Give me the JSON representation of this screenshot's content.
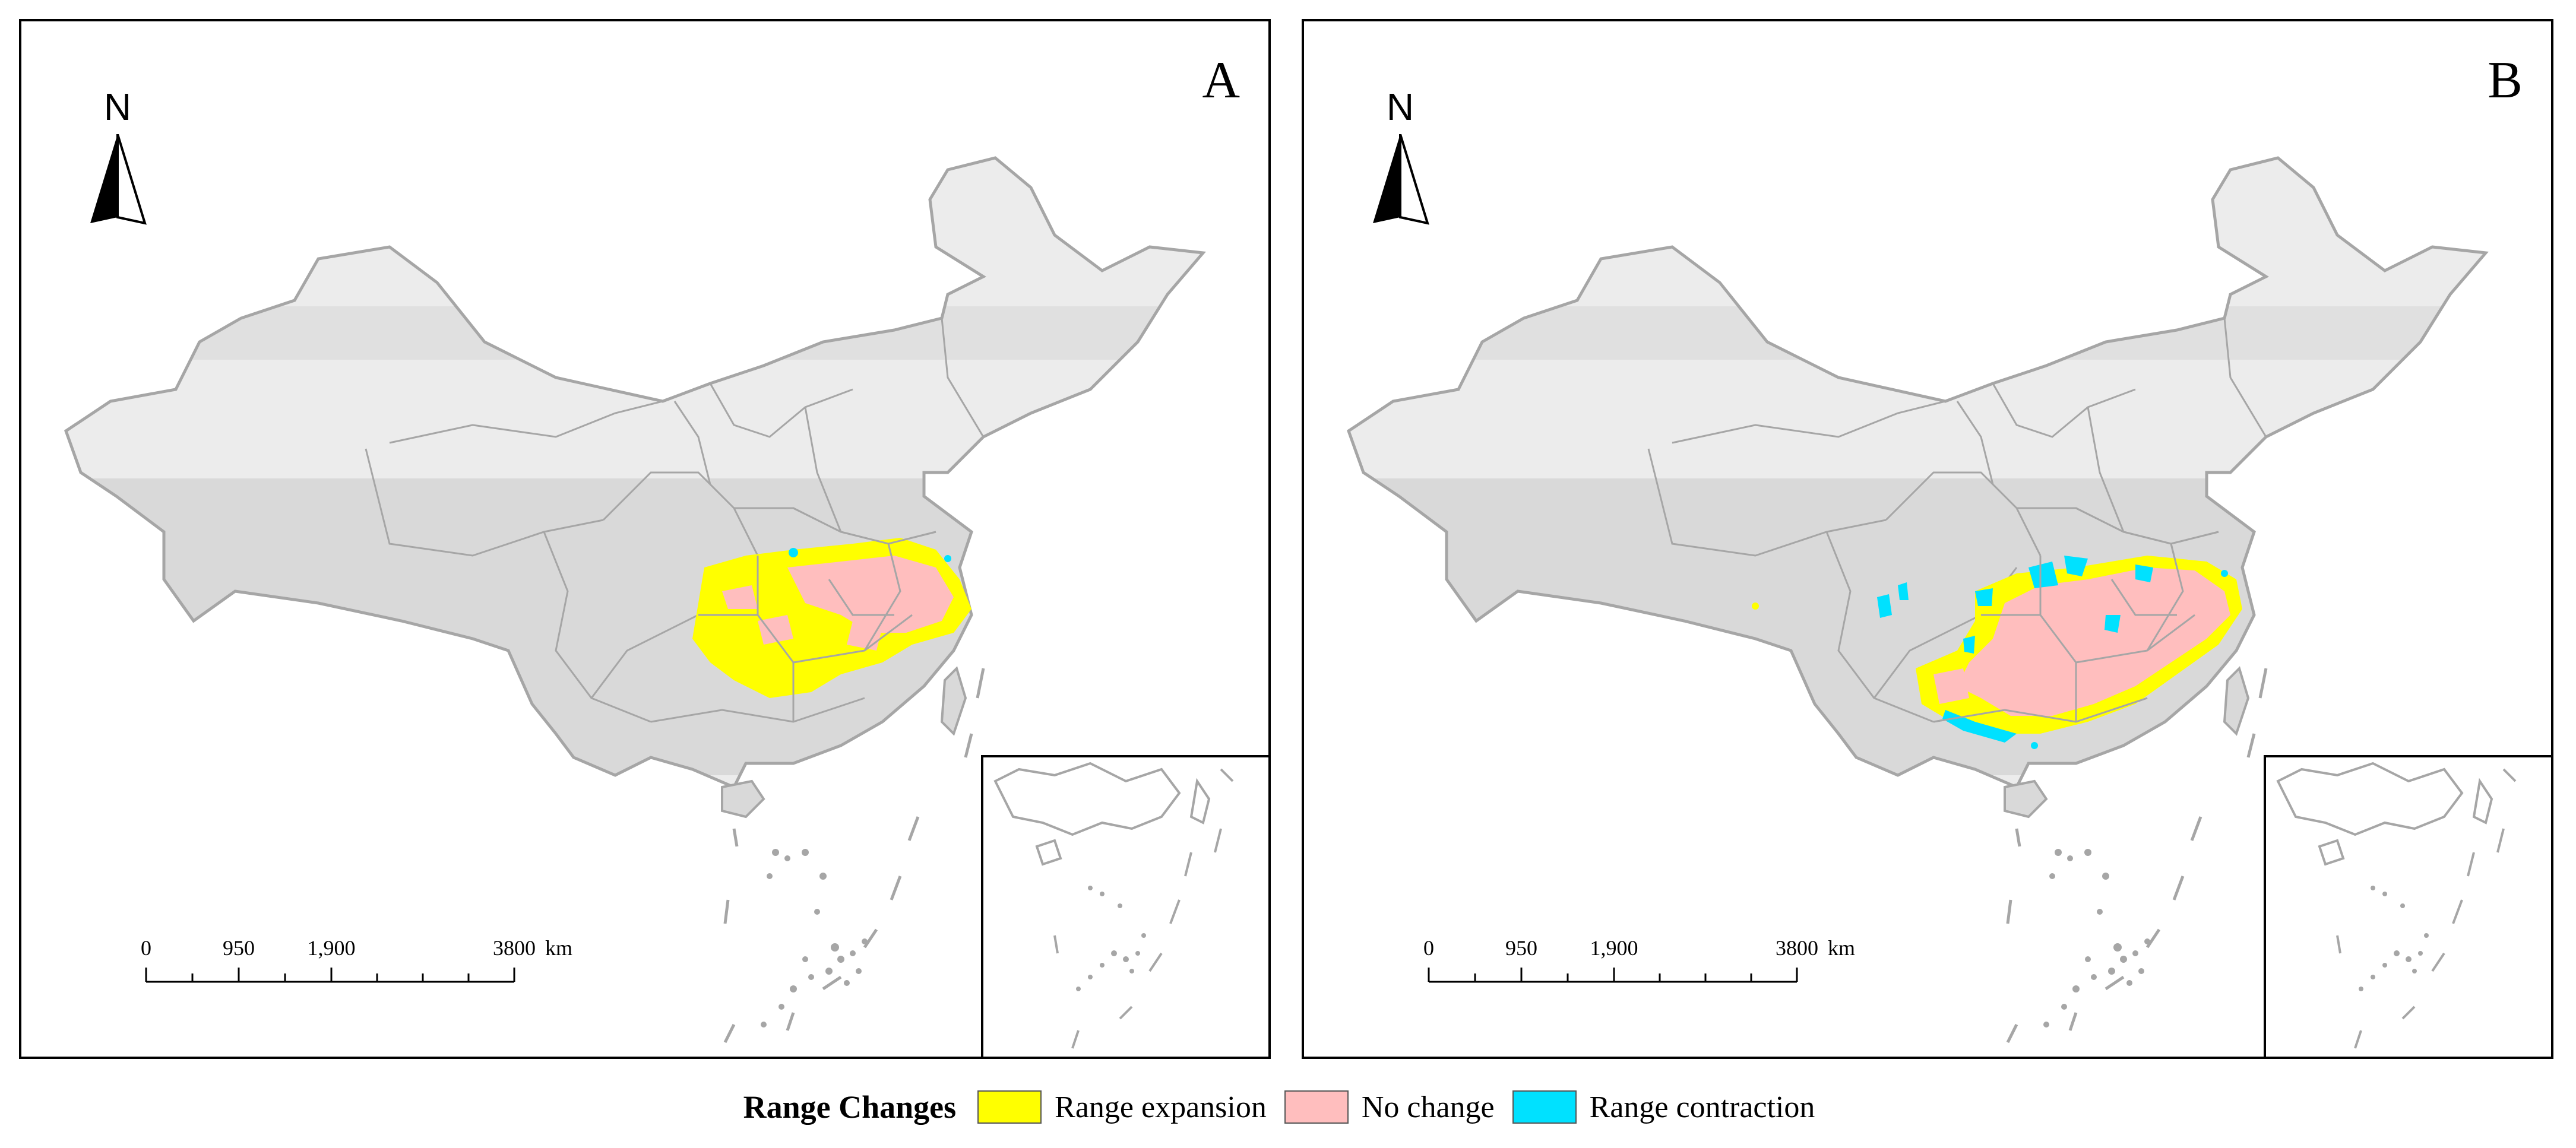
{
  "panels": [
    {
      "label": "A"
    },
    {
      "label": "B"
    }
  ],
  "north_arrow": {
    "letter": "N"
  },
  "scale_bar": {
    "ticks": [
      "0",
      "950",
      "1,900",
      "3800"
    ],
    "unit": "km"
  },
  "legend": {
    "title": "Range Changes",
    "items": [
      {
        "label": "Range expansion",
        "color": "#ffff00"
      },
      {
        "label": "No change",
        "color": "#ffbebe"
      },
      {
        "label": "Range contraction",
        "color": "#00e1ff"
      }
    ]
  },
  "colors": {
    "land": "#d9d9d9",
    "land_light": "#ececec",
    "boundary": "#a6a6a6",
    "expansion": "#ffff00",
    "no_change": "#ffbebe",
    "contraction": "#00e1ff"
  }
}
